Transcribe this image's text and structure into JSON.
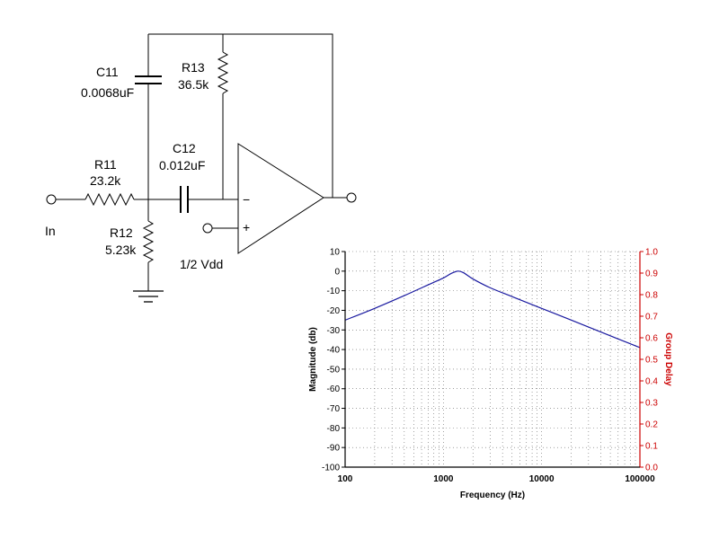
{
  "schematic": {
    "input_label": "In",
    "ref_label": "1/2 Vdd",
    "opamp": {
      "minus": "−",
      "plus": "+"
    },
    "components": {
      "C11": {
        "name": "C11",
        "value": "0.0068uF"
      },
      "R13": {
        "name": "R13",
        "value": "36.5k"
      },
      "C12": {
        "name": "C12",
        "value": "0.012uF"
      },
      "R11": {
        "name": "R11",
        "value": "23.2k"
      },
      "R12": {
        "name": "R12",
        "value": "5.23k"
      }
    }
  },
  "chart_data": {
    "type": "line",
    "xlabel": "Frequency (Hz)",
    "ylabel": "Magnitude (db)",
    "y2label": "Group Delay",
    "x_scale": "log",
    "xlim": [
      100,
      100000
    ],
    "ylim": [
      -100,
      10
    ],
    "y2lim": [
      0.0,
      1.0
    ],
    "x_ticks": [
      "100",
      "1000",
      "10000",
      "100000"
    ],
    "x_tick_values": [
      100,
      1000,
      10000,
      100000
    ],
    "y_ticks": [
      "10",
      "0",
      "-10",
      "-20",
      "-30",
      "-40",
      "-50",
      "-60",
      "-70",
      "-80",
      "-90",
      "-100"
    ],
    "y2_ticks": [
      "1.0",
      "0.9",
      "0.8",
      "0.7",
      "0.6",
      "0.5",
      "0.4",
      "0.3",
      "0.2",
      "0.1",
      "0.0"
    ],
    "grid": true,
    "series": [
      {
        "color": "#1a1aa0",
        "x": [
          100,
          200,
          400,
          700,
          1000,
          1200,
          1400,
          1600,
          2000,
          3000,
          5000,
          10000,
          20000,
          50000,
          100000
        ],
        "y": [
          -25,
          -19,
          -12.5,
          -7,
          -3.5,
          -1.2,
          0,
          -0.8,
          -4,
          -8.5,
          -13,
          -19,
          -25,
          -33,
          -39
        ]
      }
    ],
    "colors": {
      "grid": "#666666",
      "right_axis": "#cc0000",
      "curve": "#1a1aa0"
    }
  }
}
